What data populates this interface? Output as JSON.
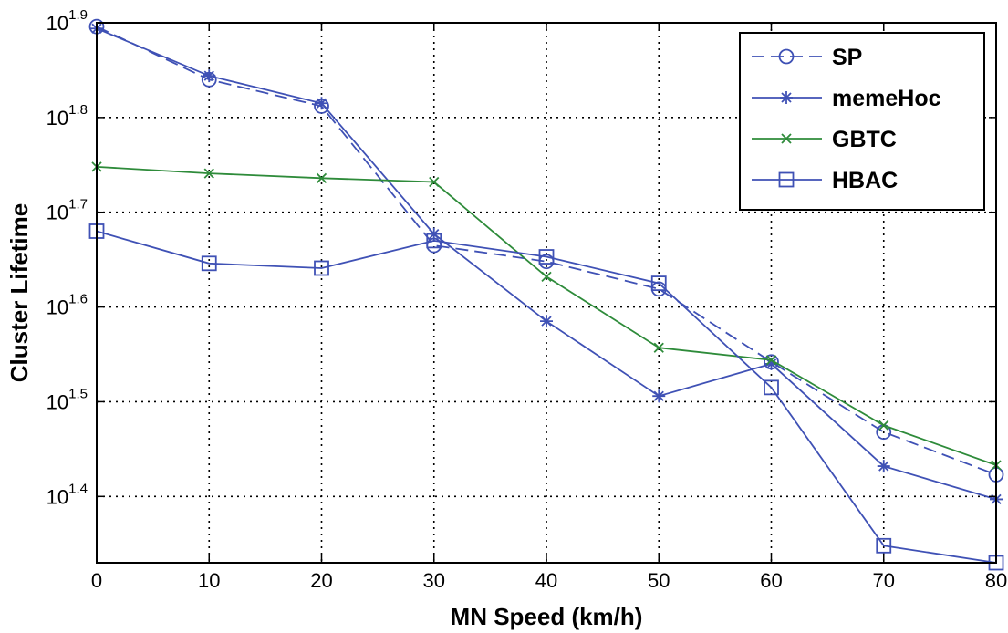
{
  "chart_data": {
    "type": "line",
    "title": "",
    "xlabel": "MN Speed (km/h)",
    "ylabel": "Cluster Lifetime",
    "x": [
      0,
      10,
      20,
      30,
      40,
      50,
      60,
      70,
      80
    ],
    "xlim": [
      0,
      80
    ],
    "xticks": [
      "0",
      "10",
      "20",
      "30",
      "40",
      "50",
      "60",
      "70",
      "80"
    ],
    "yscale": "log10",
    "ylim_exponent": [
      1.33,
      1.9
    ],
    "yticks": [
      {
        "base": "10",
        "exp": "1.9",
        "value": 1.9
      },
      {
        "base": "10",
        "exp": "1.8",
        "value": 1.8
      },
      {
        "base": "10",
        "exp": "1.7",
        "value": 1.7
      },
      {
        "base": "10",
        "exp": "1.6",
        "value": 1.6
      },
      {
        "base": "10",
        "exp": "1.5",
        "value": 1.5
      },
      {
        "base": "10",
        "exp": "1.4",
        "value": 1.4
      }
    ],
    "grid": true,
    "legend_position": "top-right",
    "series": [
      {
        "name": "SP",
        "color": "#3f51b5",
        "dash": true,
        "marker": "circle",
        "values": [
          1.896,
          1.84,
          1.812,
          1.665,
          1.648,
          1.619,
          1.542,
          1.468,
          1.423
        ]
      },
      {
        "name": "memeHoc",
        "color": "#3f51b5",
        "dash": false,
        "marker": "star",
        "values": [
          1.894,
          1.844,
          1.815,
          1.677,
          1.585,
          1.506,
          1.54,
          1.432,
          1.397
        ]
      },
      {
        "name": "GBTC",
        "color": "#2e8b3a",
        "dash": false,
        "marker": "x",
        "values": [
          1.748,
          1.741,
          1.736,
          1.732,
          1.632,
          1.557,
          1.544,
          1.475,
          1.433
        ]
      },
      {
        "name": "HBAC",
        "color": "#3f51b5",
        "dash": false,
        "marker": "square",
        "values": [
          1.68,
          1.646,
          1.641,
          1.67,
          1.653,
          1.625,
          1.515,
          1.348,
          1.33
        ]
      }
    ]
  }
}
